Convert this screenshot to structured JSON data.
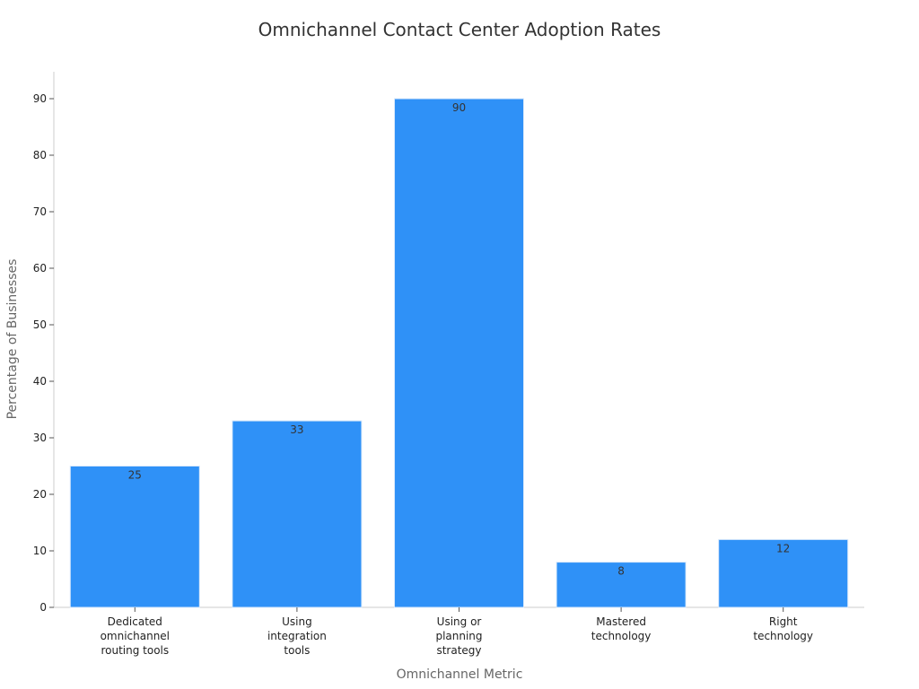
{
  "chart_data": {
    "type": "bar",
    "title": "Omnichannel Contact Center Adoption Rates",
    "xlabel": "Omnichannel Metric",
    "ylabel": "Percentage of Businesses",
    "categories": [
      [
        "Dedicated",
        "omnichannel",
        "routing tools"
      ],
      [
        "Using",
        "integration",
        "tools"
      ],
      [
        "Using or",
        "planning",
        "strategy"
      ],
      [
        "Mastered",
        "technology"
      ],
      [
        "Right",
        "technology"
      ]
    ],
    "values": [
      25,
      33,
      90,
      8,
      12
    ],
    "ylim": [
      0,
      95
    ],
    "yticks": [
      0,
      10,
      20,
      30,
      40,
      50,
      60,
      70,
      80,
      90
    ],
    "bar_color": "#2f91f7",
    "grid": false,
    "legend": "none"
  }
}
